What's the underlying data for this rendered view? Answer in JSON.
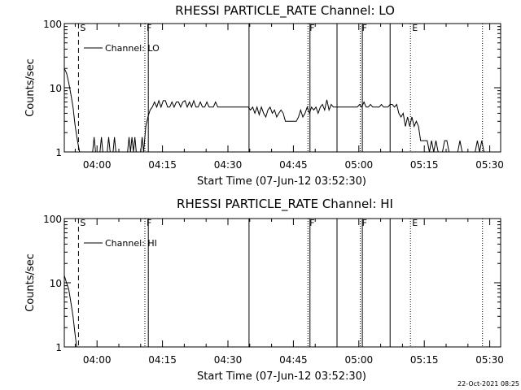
{
  "footer_timestamp": "22-Oct-2021 08:25",
  "chart_data": [
    {
      "type": "line",
      "title": "RHESSI PARTICLE_RATE Channel: LO",
      "xlabel": "Start Time (07-Jun-12 03:52:30)",
      "ylabel": "Counts/sec",
      "y_scale": "log",
      "ylim": [
        1,
        100
      ],
      "xlim": [
        "03:52:30",
        "05:32:30"
      ],
      "y_ticks": [
        "1",
        "10",
        "100"
      ],
      "x_ticks": [
        "04:00",
        "04:15",
        "04:30",
        "04:45",
        "05:00",
        "05:15",
        "05:30"
      ],
      "legend": {
        "position": "top-left",
        "label": "Channel: LO"
      },
      "markers": [
        {
          "time": "03:55:45",
          "label": "S",
          "style": "dashed"
        },
        {
          "time": "04:10:58",
          "label": "F",
          "style": "dotted"
        },
        {
          "time": "04:11:45",
          "label": "",
          "style": "solid"
        },
        {
          "time": "04:34:50",
          "label": "",
          "style": "solid"
        },
        {
          "time": "04:48:20",
          "label": "F",
          "style": "dotted"
        },
        {
          "time": "04:48:48",
          "label": "",
          "style": "solid"
        },
        {
          "time": "04:55:00",
          "label": "",
          "style": "solid"
        },
        {
          "time": "05:00:20",
          "label": "F",
          "style": "dotted"
        },
        {
          "time": "05:00:48",
          "label": "",
          "style": "solid"
        },
        {
          "time": "05:07:10",
          "label": "",
          "style": "solid"
        },
        {
          "time": "05:11:50",
          "label": "E",
          "style": "dotted"
        },
        {
          "time": "05:28:20",
          "label": "",
          "style": "dotted"
        }
      ],
      "series": [
        {
          "name": "Channel: LO",
          "points": [
            [
              "03:52:30",
              20
            ],
            [
              "03:53:00",
              17
            ],
            [
              "03:53:30",
              12
            ],
            [
              "03:54:00",
              8
            ],
            [
              "03:54:30",
              5
            ],
            [
              "03:55:00",
              2.5
            ],
            [
              "03:55:30",
              1.5
            ],
            [
              "03:56:00",
              1
            ],
            [
              "03:59:00",
              1
            ],
            [
              "03:59:20",
              1.7
            ],
            [
              "03:59:40",
              1
            ],
            [
              "04:00:40",
              1
            ],
            [
              "04:01:00",
              1.7
            ],
            [
              "04:01:20",
              1
            ],
            [
              "04:02:20",
              1
            ],
            [
              "04:02:40",
              1.7
            ],
            [
              "04:03:00",
              1
            ],
            [
              "04:03:40",
              1
            ],
            [
              "04:04:00",
              1.7
            ],
            [
              "04:04:20",
              1
            ],
            [
              "04:07:00",
              1
            ],
            [
              "04:07:20",
              1.7
            ],
            [
              "04:07:40",
              1
            ],
            [
              "04:08:00",
              1.7
            ],
            [
              "04:08:20",
              1
            ],
            [
              "04:08:40",
              1.7
            ],
            [
              "04:09:00",
              1
            ],
            [
              "04:10:00",
              1
            ],
            [
              "04:10:20",
              1.7
            ],
            [
              "04:10:40",
              1
            ],
            [
              "04:11:10",
              2.5
            ],
            [
              "04:11:40",
              3.5
            ],
            [
              "04:12:10",
              4.5
            ],
            [
              "04:12:40",
              5
            ],
            [
              "04:13:10",
              6
            ],
            [
              "04:13:40",
              5
            ],
            [
              "04:14:10",
              6.3
            ],
            [
              "04:14:40",
              5
            ],
            [
              "04:15:10",
              6.3
            ],
            [
              "04:15:40",
              6.3
            ],
            [
              "04:16:10",
              5
            ],
            [
              "04:16:40",
              5
            ],
            [
              "04:17:10",
              6
            ],
            [
              "04:17:40",
              5
            ],
            [
              "04:18:10",
              6
            ],
            [
              "04:18:40",
              6
            ],
            [
              "04:19:10",
              5
            ],
            [
              "04:19:40",
              6
            ],
            [
              "04:20:10",
              6.3
            ],
            [
              "04:20:40",
              5
            ],
            [
              "04:21:10",
              6
            ],
            [
              "04:21:40",
              5
            ],
            [
              "04:22:10",
              6.3
            ],
            [
              "04:22:40",
              5
            ],
            [
              "04:23:10",
              5
            ],
            [
              "04:23:40",
              6
            ],
            [
              "04:24:10",
              5
            ],
            [
              "04:24:40",
              5
            ],
            [
              "04:25:10",
              6
            ],
            [
              "04:25:40",
              5
            ],
            [
              "04:26:10",
              5
            ],
            [
              "04:26:40",
              5
            ],
            [
              "04:27:10",
              6
            ],
            [
              "04:27:40",
              5
            ],
            [
              "04:28:10",
              5
            ],
            [
              "04:28:40",
              5
            ],
            [
              "04:29:10",
              5
            ],
            [
              "04:29:40",
              5
            ],
            [
              "04:30:10",
              5
            ],
            [
              "04:30:40",
              5
            ],
            [
              "04:31:10",
              5
            ],
            [
              "04:31:40",
              5
            ],
            [
              "04:32:10",
              5
            ],
            [
              "04:32:40",
              5
            ],
            [
              "04:33:10",
              5
            ],
            [
              "04:33:40",
              5
            ],
            [
              "04:34:10",
              5
            ],
            [
              "04:34:40",
              5
            ],
            [
              "04:35:10",
              4.5
            ],
            [
              "04:35:40",
              5
            ],
            [
              "04:36:10",
              4
            ],
            [
              "04:36:40",
              5
            ],
            [
              "04:37:10",
              3.8
            ],
            [
              "04:37:40",
              5
            ],
            [
              "04:38:10",
              4
            ],
            [
              "04:38:40",
              3.5
            ],
            [
              "04:39:10",
              4.5
            ],
            [
              "04:39:40",
              5
            ],
            [
              "04:40:10",
              4
            ],
            [
              "04:40:40",
              4.5
            ],
            [
              "04:41:10",
              3.5
            ],
            [
              "04:41:40",
              4
            ],
            [
              "04:42:10",
              4.5
            ],
            [
              "04:42:40",
              4
            ],
            [
              "04:43:10",
              3
            ],
            [
              "04:43:40",
              3
            ],
            [
              "04:44:10",
              3
            ],
            [
              "04:44:40",
              3
            ],
            [
              "04:45:10",
              3
            ],
            [
              "04:45:40",
              3
            ],
            [
              "04:46:10",
              3.5
            ],
            [
              "04:46:40",
              4.5
            ],
            [
              "04:47:10",
              3.5
            ],
            [
              "04:47:40",
              4
            ],
            [
              "04:48:10",
              5
            ],
            [
              "04:48:40",
              4
            ],
            [
              "04:49:10",
              5
            ],
            [
              "04:49:40",
              4.5
            ],
            [
              "04:50:10",
              5
            ],
            [
              "04:50:40",
              4
            ],
            [
              "04:51:10",
              5
            ],
            [
              "04:51:40",
              5.5
            ],
            [
              "04:52:10",
              4.5
            ],
            [
              "04:52:40",
              6.5
            ],
            [
              "04:53:10",
              4.5
            ],
            [
              "04:53:40",
              5.5
            ],
            [
              "04:54:10",
              5
            ],
            [
              "04:54:40",
              5
            ],
            [
              "04:55:10",
              5
            ],
            [
              "04:55:40",
              5
            ],
            [
              "04:56:10",
              5
            ],
            [
              "04:56:40",
              5
            ],
            [
              "04:57:10",
              5
            ],
            [
              "04:57:40",
              5
            ],
            [
              "04:58:10",
              5
            ],
            [
              "04:58:40",
              5
            ],
            [
              "04:59:10",
              5
            ],
            [
              "04:59:40",
              5
            ],
            [
              "05:00:10",
              5.5
            ],
            [
              "05:00:40",
              5
            ],
            [
              "05:01:10",
              6
            ],
            [
              "05:01:40",
              5
            ],
            [
              "05:02:10",
              5
            ],
            [
              "05:02:40",
              5.5
            ],
            [
              "05:03:10",
              5
            ],
            [
              "05:03:40",
              5
            ],
            [
              "05:04:10",
              5
            ],
            [
              "05:04:40",
              5
            ],
            [
              "05:05:10",
              5.5
            ],
            [
              "05:05:40",
              5
            ],
            [
              "05:06:10",
              5
            ],
            [
              "05:06:40",
              5
            ],
            [
              "05:07:10",
              5.5
            ],
            [
              "05:07:40",
              5.5
            ],
            [
              "05:08:10",
              5
            ],
            [
              "05:08:40",
              5.5
            ],
            [
              "05:09:10",
              4
            ],
            [
              "05:09:40",
              3.5
            ],
            [
              "05:10:10",
              4
            ],
            [
              "05:10:40",
              2.5
            ],
            [
              "05:11:10",
              3.5
            ],
            [
              "05:11:40",
              2.5
            ],
            [
              "05:12:10",
              3.5
            ],
            [
              "05:12:40",
              2.5
            ],
            [
              "05:13:10",
              3
            ],
            [
              "05:13:40",
              2.5
            ],
            [
              "05:14:10",
              1.5
            ],
            [
              "05:14:40",
              1.5
            ],
            [
              "05:15:10",
              1.5
            ],
            [
              "05:15:40",
              1.5
            ],
            [
              "05:16:10",
              1
            ],
            [
              "05:16:40",
              1.5
            ],
            [
              "05:17:10",
              1
            ],
            [
              "05:17:40",
              1.5
            ],
            [
              "05:18:10",
              1
            ],
            [
              "05:19:10",
              1
            ],
            [
              "05:19:40",
              1.5
            ],
            [
              "05:20:10",
              1.5
            ],
            [
              "05:20:40",
              1
            ],
            [
              "05:22:40",
              1
            ],
            [
              "05:23:10",
              1.5
            ],
            [
              "05:23:40",
              1
            ],
            [
              "05:26:40",
              1
            ],
            [
              "05:27:10",
              1.5
            ],
            [
              "05:27:40",
              1
            ],
            [
              "05:28:10",
              1.5
            ],
            [
              "05:28:40",
              1
            ]
          ]
        }
      ]
    },
    {
      "type": "line",
      "title": "RHESSI PARTICLE_RATE Channel: HI",
      "xlabel": "Start Time (07-Jun-12 03:52:30)",
      "ylabel": "Counts/sec",
      "y_scale": "log",
      "ylim": [
        1,
        100
      ],
      "xlim": [
        "03:52:30",
        "05:32:30"
      ],
      "y_ticks": [
        "1",
        "10",
        "100"
      ],
      "x_ticks": [
        "04:00",
        "04:15",
        "04:30",
        "04:45",
        "05:00",
        "05:15",
        "05:30"
      ],
      "legend": {
        "position": "top-left",
        "label": "Channel: HI"
      },
      "markers": [
        {
          "time": "03:55:45",
          "label": "S",
          "style": "dashed"
        },
        {
          "time": "04:10:58",
          "label": "F",
          "style": "dotted"
        },
        {
          "time": "04:11:45",
          "label": "",
          "style": "solid"
        },
        {
          "time": "04:34:50",
          "label": "",
          "style": "solid"
        },
        {
          "time": "04:48:20",
          "label": "F",
          "style": "dotted"
        },
        {
          "time": "04:48:48",
          "label": "",
          "style": "solid"
        },
        {
          "time": "04:55:00",
          "label": "",
          "style": "solid"
        },
        {
          "time": "05:00:20",
          "label": "F",
          "style": "dotted"
        },
        {
          "time": "05:00:48",
          "label": "",
          "style": "solid"
        },
        {
          "time": "05:07:10",
          "label": "",
          "style": "solid"
        },
        {
          "time": "05:11:50",
          "label": "E",
          "style": "dotted"
        },
        {
          "time": "05:28:20",
          "label": "",
          "style": "dotted"
        }
      ],
      "series": [
        {
          "name": "Channel: HI",
          "points": [
            [
              "03:52:30",
              13
            ],
            [
              "03:53:00",
              10
            ],
            [
              "03:53:30",
              8
            ],
            [
              "03:54:00",
              5
            ],
            [
              "03:54:30",
              3
            ],
            [
              "03:55:00",
              1.5
            ],
            [
              "03:55:20",
              1
            ]
          ]
        }
      ]
    }
  ]
}
